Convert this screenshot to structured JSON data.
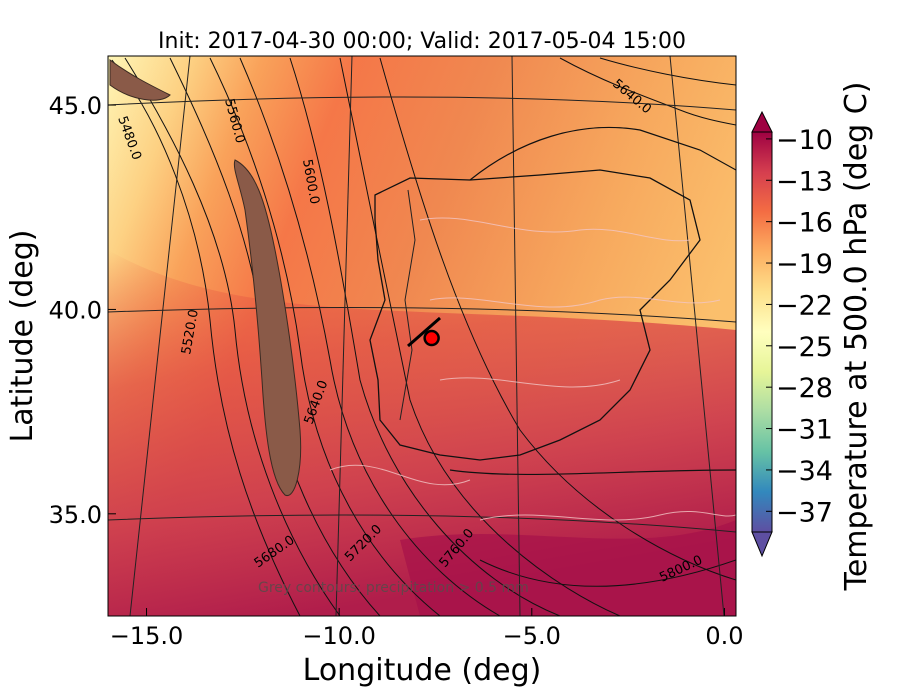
{
  "title": "Init: 2017-04-30 00:00; Valid: 2017-05-04 15:00",
  "xlabel": "Longitude (deg)",
  "ylabel": "Latitude (deg)",
  "colorbar": {
    "label": "Temperature at 500.0 hPa (deg C)",
    "ticks": [
      "−10",
      "−13",
      "−16",
      "−19",
      "−22",
      "−25",
      "−28",
      "−31",
      "−34",
      "−37"
    ],
    "tick_values": [
      -10,
      -13,
      -16,
      -19,
      -22,
      -25,
      -28,
      -31,
      -34,
      -37
    ],
    "range": [
      -38.5,
      -9.5
    ],
    "colors": [
      "#5e4fa2",
      "#3288bd",
      "#66c2a5",
      "#abdda4",
      "#e6f598",
      "#ffffbf",
      "#fee08b",
      "#fdae61",
      "#f46d43",
      "#d53e4f",
      "#9e0142"
    ]
  },
  "axes": {
    "xticks": [
      "−15.0",
      "−10.0",
      "−5.0",
      "0.0"
    ],
    "xtick_values": [
      -15,
      -10,
      -5,
      0
    ],
    "yticks": [
      "45.0",
      "40.0",
      "35.0"
    ],
    "ytick_values": [
      45,
      40,
      35
    ],
    "xlim": [
      -16,
      0.3
    ],
    "ylim": [
      32.5,
      46.2
    ]
  },
  "contour_labels": [
    "5480.0",
    "5520.0",
    "5560.0",
    "5600.0",
    "5640.0",
    "5640.0",
    "5680.0",
    "5720.0",
    "5760.0",
    "5800.0"
  ],
  "annotation": "Grey contours: precipitation > 0.5 mm",
  "marker": {
    "name": "location marker",
    "lon": -7.6,
    "lat": 39.3,
    "color": "#ff0000"
  }
}
